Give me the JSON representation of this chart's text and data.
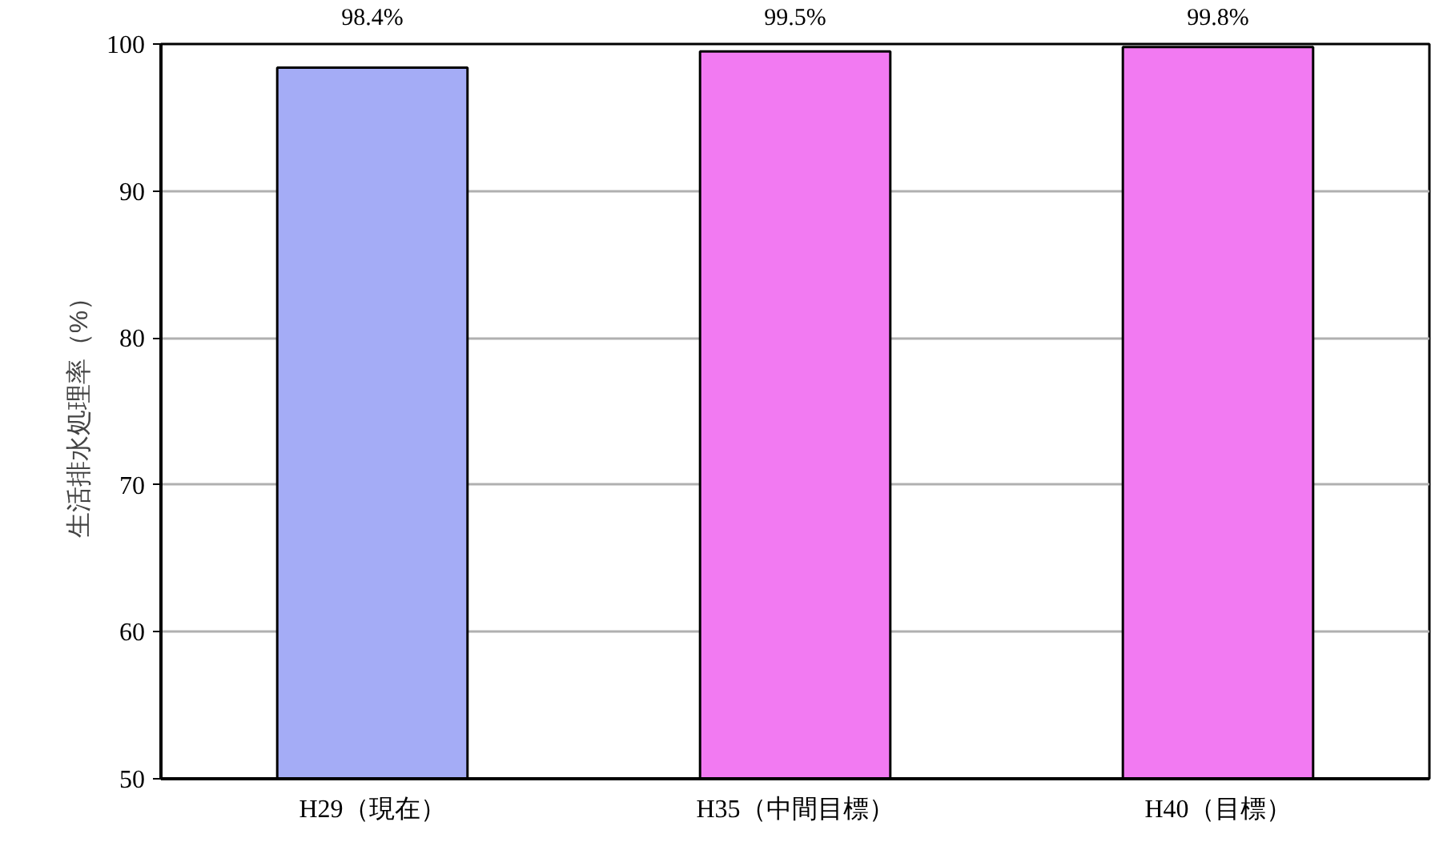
{
  "chart_data": {
    "type": "bar",
    "ylabel": "生活排水処理率（%）",
    "categories": [
      "H29（現在）",
      "H35（中間目標）",
      "H40（目標）"
    ],
    "values": [
      98.4,
      99.5,
      99.8
    ],
    "colors": [
      "#a4acf6",
      "#f27af2",
      "#f27af2"
    ],
    "value_labels": [
      "98.4%",
      "99.5%",
      "99.8%"
    ],
    "ylim": [
      50,
      100
    ],
    "yticks": [
      50,
      60,
      70,
      80,
      90,
      100
    ],
    "grid": "y"
  }
}
